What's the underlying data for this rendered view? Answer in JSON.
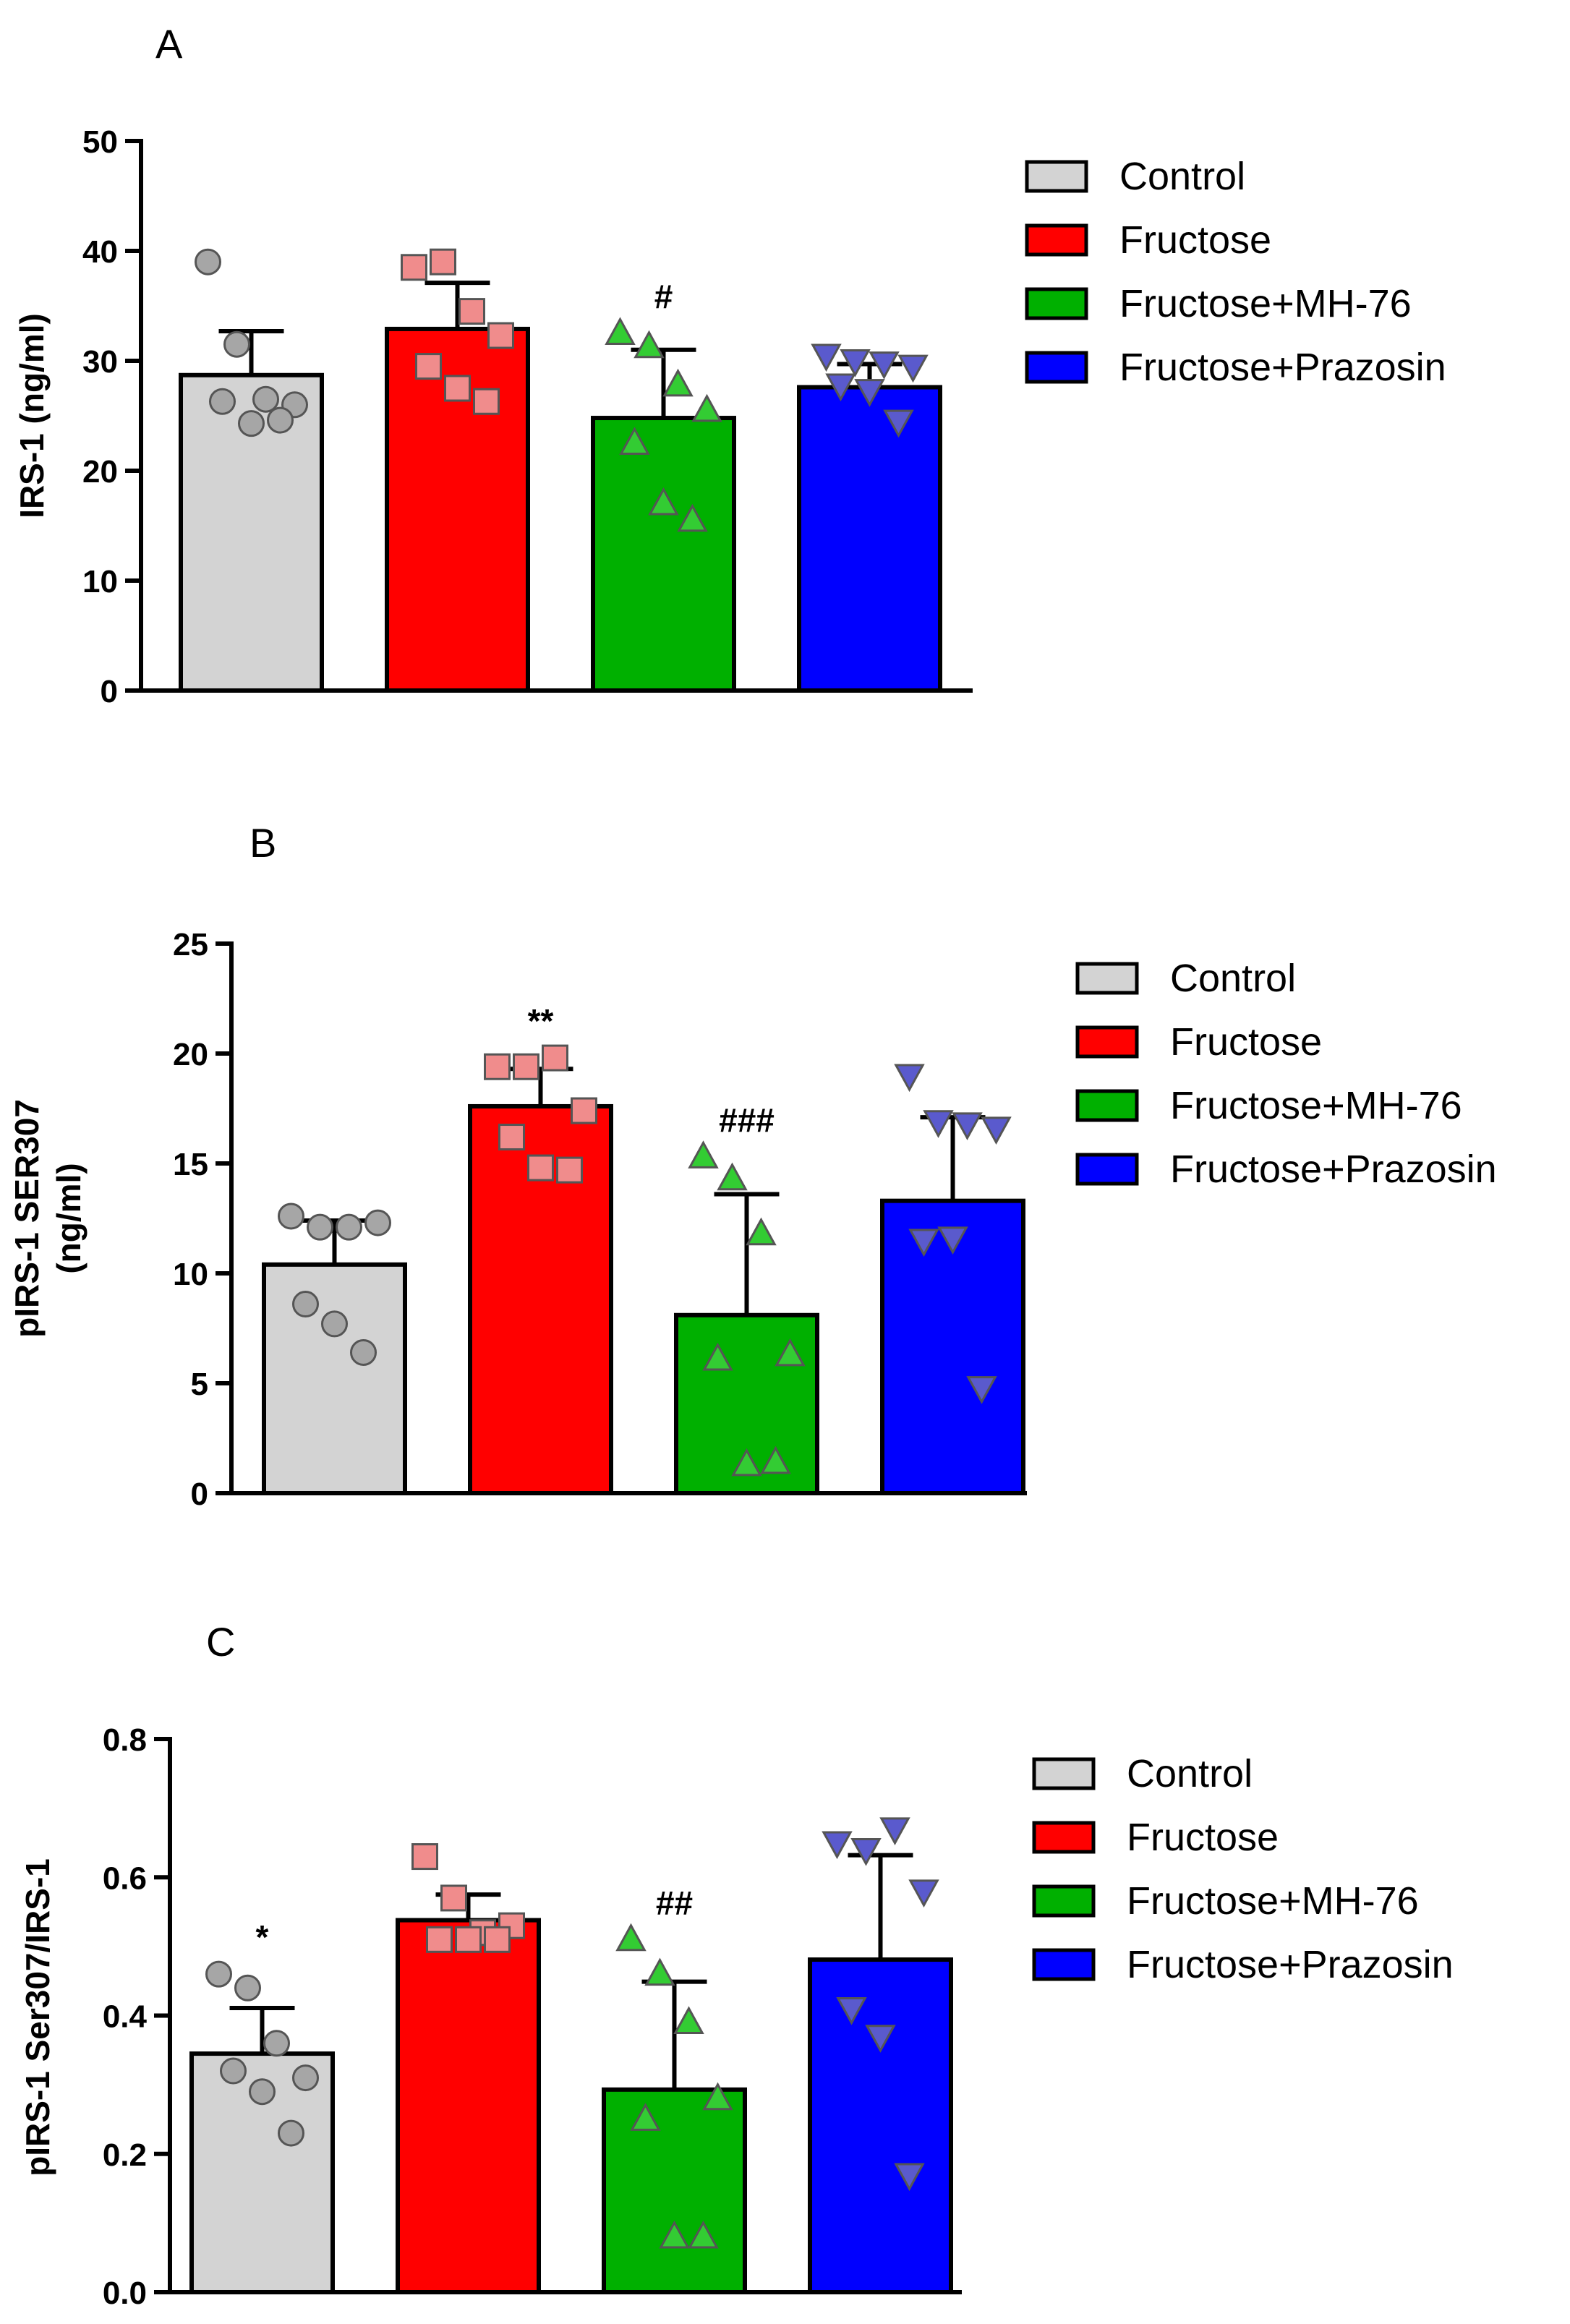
{
  "legend_labels": [
    "Control",
    "Fructose",
    "Fructose+MH-76",
    "Fructose+Prazosin"
  ],
  "colors": {
    "bars": [
      "#d3d3d3",
      "#ff0000",
      "#00b000",
      "#0000ff"
    ],
    "points_fill": [
      "#a6a6a6",
      "#f08c8c",
      "#33cc33",
      "#5a5acd"
    ],
    "axis": "#000000"
  },
  "point_markers": [
    "circle",
    "square",
    "triangle-up",
    "triangle-down"
  ],
  "chart_data": [
    {
      "panel_label": "A",
      "type": "bar",
      "categories": [
        "Control",
        "Fructose",
        "Fructose+MH-76",
        "Fructose+Prazosin"
      ],
      "ylabel_lines": [
        "IRS-1 (ng/ml)"
      ],
      "xlabel": "",
      "ylim": [
        0,
        50
      ],
      "yticks": [
        0,
        10,
        20,
        30,
        40,
        50
      ],
      "ytick_labels": [
        "0",
        "10",
        "20",
        "30",
        "40",
        "50"
      ],
      "legend_position": "right",
      "series": [
        {
          "values": [
            28.7,
            32.9,
            24.8,
            27.6
          ],
          "errors": [
            4.0,
            4.2,
            6.2,
            2.1
          ],
          "points": [
            [
              39.0,
              31.5,
              26.5,
              26.0,
              26.3,
              24.3,
              24.6
            ],
            [
              38.5,
              39.0,
              34.5,
              32.3,
              29.5,
              27.5,
              26.3
            ],
            [
              32.5,
              31.3,
              27.8,
              25.5,
              22.5,
              17.0,
              15.5
            ],
            [
              30.5,
              30.0,
              29.8,
              29.5,
              27.8,
              27.3,
              24.5
            ]
          ],
          "annotations": [
            "",
            "",
            "#",
            ""
          ]
        }
      ]
    },
    {
      "panel_label": "B",
      "type": "bar",
      "categories": [
        "Control",
        "Fructose",
        "Fructose+MH-76",
        "Fructose+Prazosin"
      ],
      "ylabel_lines": [
        "pIRS-1 SER307",
        "(ng/ml)"
      ],
      "xlabel": "",
      "ylim": [
        0,
        25
      ],
      "yticks": [
        0,
        5,
        10,
        15,
        20,
        25
      ],
      "ytick_labels": [
        "0",
        "5",
        "10",
        "15",
        "20",
        "25"
      ],
      "legend_position": "right",
      "series": [
        {
          "values": [
            10.4,
            17.6,
            8.1,
            13.3
          ],
          "errors": [
            2.0,
            1.7,
            5.5,
            3.8
          ],
          "points": [
            [
              12.6,
              12.1,
              12.1,
              12.3,
              8.6,
              7.7,
              6.4
            ],
            [
              19.4,
              19.4,
              19.8,
              17.4,
              16.2,
              14.8,
              14.7
            ],
            [
              15.3,
              14.3,
              11.8,
              6.3,
              6.1,
              1.3,
              1.4
            ],
            [
              19.0,
              16.9,
              16.8,
              16.6,
              11.5,
              11.6,
              4.8
            ]
          ],
          "annotations": [
            "",
            "**",
            "###",
            ""
          ]
        }
      ]
    },
    {
      "panel_label": "C",
      "type": "bar",
      "categories": [
        "Control",
        "Fructose",
        "Fructose+MH-76",
        "Fructose+Prazosin"
      ],
      "ylabel_lines": [
        "pIRS-1 Ser307/IRS-1"
      ],
      "xlabel": "",
      "ylim": [
        0,
        0.8
      ],
      "yticks": [
        0,
        0.2,
        0.4,
        0.6,
        0.8
      ],
      "ytick_labels": [
        "0.0",
        "0.2",
        "0.4",
        "0.6",
        "0.8"
      ],
      "legend_position": "right",
      "series": [
        {
          "values": [
            0.345,
            0.538,
            0.293,
            0.481
          ],
          "errors": [
            0.066,
            0.037,
            0.156,
            0.151
          ],
          "points": [
            [
              0.46,
              0.44,
              0.36,
              0.31,
              0.32,
              0.29,
              0.23
            ],
            [
              0.63,
              0.57,
              0.52,
              0.53,
              0.51,
              0.51,
              0.51
            ],
            [
              0.51,
              0.46,
              0.39,
              0.28,
              0.25,
              0.08,
              0.08
            ],
            [
              0.65,
              0.64,
              0.67,
              0.58,
              0.41,
              0.37,
              0.17
            ]
          ],
          "annotations": [
            "*",
            "",
            "##",
            ""
          ]
        }
      ]
    }
  ]
}
